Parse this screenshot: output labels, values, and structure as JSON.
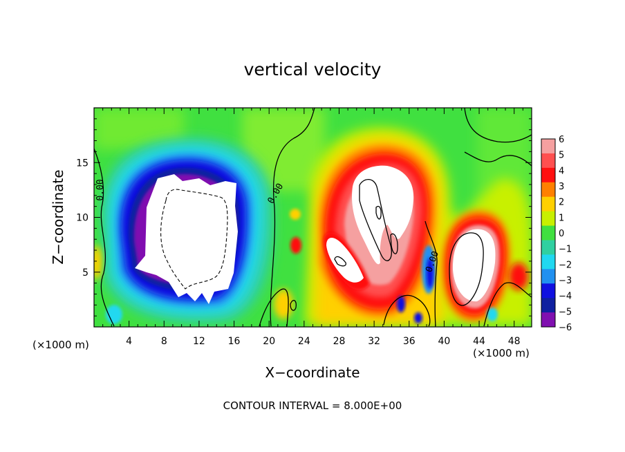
{
  "chart_data": {
    "type": "heatmap",
    "title": "vertical velocity",
    "xlabel": "X−coordinate",
    "ylabel": "Z−coordinate",
    "x_unit_left": "(×1000 m)",
    "x_unit_right": "(×1000 m)",
    "xlim": [
      0,
      50
    ],
    "ylim": [
      0,
      20
    ],
    "x_ticks": [
      "4",
      "8",
      "12",
      "16",
      "20",
      "24",
      "28",
      "32",
      "36",
      "40",
      "44",
      "48"
    ],
    "x_tick_values": [
      4,
      8,
      12,
      16,
      20,
      24,
      28,
      32,
      36,
      40,
      44,
      48
    ],
    "y_ticks": [
      "5",
      "10",
      "15"
    ],
    "y_tick_values": [
      5,
      10,
      15
    ],
    "colorbar": {
      "labels": [
        "6",
        "5",
        "4",
        "3",
        "2",
        "1",
        "0",
        "−1",
        "−2",
        "−3",
        "−4",
        "−5",
        "−6"
      ],
      "values": [
        6,
        5,
        4,
        3,
        2,
        1,
        0,
        -1,
        -2,
        -3,
        -4,
        -5,
        -6
      ],
      "colors": [
        "#f5a0a0",
        "#ff5050",
        "#ff1010",
        "#ff8000",
        "#ffd000",
        "#c8f000",
        "#40e040",
        "#30d0a0",
        "#20d8f0",
        "#2090f0",
        "#1010e0",
        "#1020a0",
        "#8010b0"
      ]
    },
    "contour_labels": [
      "0.00",
      "0.00",
      "0.00"
    ],
    "contour_interval_label": "CONTOUR INTERVAL = 8.000E+00",
    "colors": {
      "background": "#40e040",
      "strong_up": "#ffffff",
      "strong_down": "#ffffff"
    },
    "features": [
      {
        "name": "downdraft-core",
        "x": [
          6.5,
          16
        ],
        "z": [
          3,
          13.5
        ],
        "value": -8
      },
      {
        "name": "updraft-core-upper",
        "x": [
          30,
          35
        ],
        "z": [
          8,
          13
        ],
        "value": 8
      },
      {
        "name": "updraft-core-left",
        "x": [
          26.5,
          29
        ],
        "z": [
          4,
          8
        ],
        "value": 8
      },
      {
        "name": "updraft-core-right",
        "x": [
          40.5,
          44.5
        ],
        "z": [
          2,
          9
        ],
        "value": 8
      }
    ]
  }
}
